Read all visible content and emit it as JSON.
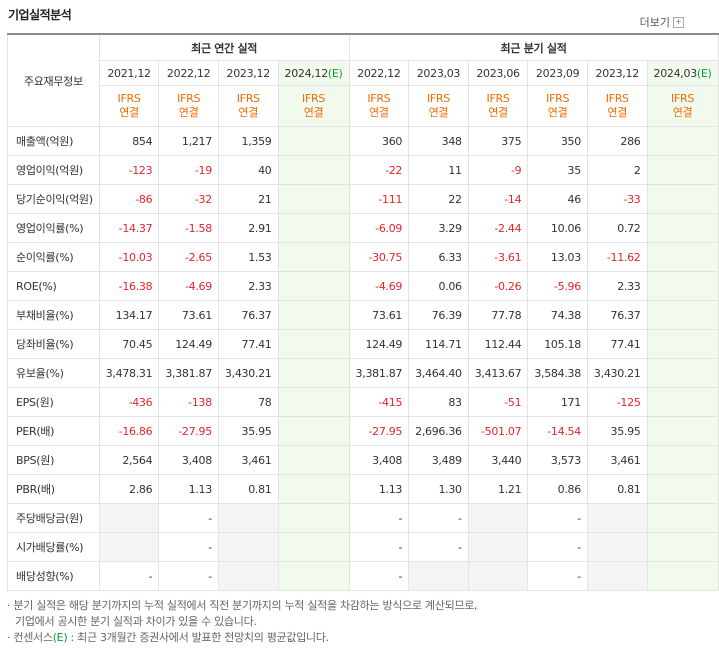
{
  "header": {
    "title": "기업실적분석",
    "more": "더보기"
  },
  "table": {
    "corner": "주요재무정보",
    "groups": [
      {
        "label": "최근 연간 실적",
        "columns": [
          {
            "period": "2021,12",
            "basis": "IFRS\n연결"
          },
          {
            "period": "2022,12",
            "basis": "IFRS\n연결"
          },
          {
            "period": "2023,12",
            "basis": "IFRS\n연결"
          },
          {
            "period": "2024,12",
            "mark": "(E)",
            "basis": "IFRS\n연결"
          }
        ]
      },
      {
        "label": "최근 분기 실적",
        "columns": [
          {
            "period": "2022,12",
            "basis": "IFRS\n연결"
          },
          {
            "period": "2023,03",
            "basis": "IFRS\n연결"
          },
          {
            "period": "2023,06",
            "basis": "IFRS\n연결"
          },
          {
            "period": "2023,09",
            "basis": "IFRS\n연결"
          },
          {
            "period": "2023,12",
            "basis": "IFRS\n연결"
          },
          {
            "period": "2024,03",
            "mark": "(E)",
            "basis": "IFRS\n연결"
          }
        ]
      }
    ],
    "sections": [
      [
        {
          "label": "매출액(억원)",
          "values": [
            "854",
            "1,217",
            "1,359",
            null,
            "360",
            "348",
            "375",
            "350",
            "286",
            null
          ]
        },
        {
          "label": "영업이익(억원)",
          "values": [
            "-123",
            "-19",
            "40",
            null,
            "-22",
            "11",
            "-9",
            "35",
            "2",
            null
          ]
        },
        {
          "label": "당기순이익(억원)",
          "values": [
            "-86",
            "-32",
            "21",
            null,
            "-111",
            "22",
            "-14",
            "46",
            "-33",
            null
          ]
        }
      ],
      [
        {
          "label": "영업이익률(%)",
          "values": [
            "-14.37",
            "-1.58",
            "2.91",
            null,
            "-6.09",
            "3.29",
            "-2.44",
            "10.06",
            "0.72",
            null
          ]
        },
        {
          "label": "순이익률(%)",
          "values": [
            "-10.03",
            "-2.65",
            "1.53",
            null,
            "-30.75",
            "6.33",
            "-3.61",
            "13.03",
            "-11.62",
            null
          ]
        },
        {
          "label": "ROE(%)",
          "values": [
            "-16.38",
            "-4.69",
            "2.33",
            null,
            "-4.69",
            "0.06",
            "-0.26",
            "-5.96",
            "2.33",
            null
          ]
        }
      ],
      [
        {
          "label": "부채비율(%)",
          "values": [
            "134.17",
            "73.61",
            "76.37",
            null,
            "73.61",
            "76.39",
            "77.78",
            "74.38",
            "76.37",
            null
          ]
        },
        {
          "label": "당좌비율(%)",
          "values": [
            "70.45",
            "124.49",
            "77.41",
            null,
            "124.49",
            "114.71",
            "112.44",
            "105.18",
            "77.41",
            null
          ]
        },
        {
          "label": "유보율(%)",
          "values": [
            "3,478.31",
            "3,381.87",
            "3,430.21",
            null,
            "3,381.87",
            "3,464.40",
            "3,413.67",
            "3,584.38",
            "3,430.21",
            null
          ]
        }
      ],
      [
        {
          "label": "EPS(원)",
          "values": [
            "-436",
            "-138",
            "78",
            null,
            "-415",
            "83",
            "-51",
            "171",
            "-125",
            null
          ]
        },
        {
          "label": "PER(배)",
          "values": [
            "-16.86",
            "-27.95",
            "35.95",
            null,
            "-27.95",
            "2,696.36",
            "-501.07",
            "-14.54",
            "35.95",
            null
          ]
        },
        {
          "label": "BPS(원)",
          "values": [
            "2,564",
            "3,408",
            "3,461",
            null,
            "3,408",
            "3,489",
            "3,440",
            "3,573",
            "3,461",
            null
          ]
        },
        {
          "label": "PBR(배)",
          "values": [
            "2.86",
            "1.13",
            "0.81",
            null,
            "1.13",
            "1.30",
            "1.21",
            "0.86",
            "0.81",
            null
          ]
        }
      ],
      [
        {
          "label": "주당배당금(원)",
          "values": [
            null,
            "-",
            null,
            null,
            "-",
            "-",
            null,
            "-",
            null,
            null
          ]
        },
        {
          "label": "시가배당률(%)",
          "values": [
            null,
            "-",
            null,
            null,
            "-",
            "-",
            null,
            "-",
            null,
            null
          ]
        },
        {
          "label": "배당성향(%)",
          "values": [
            "-",
            "-",
            null,
            null,
            "-",
            null,
            null,
            "-",
            null,
            null
          ]
        }
      ]
    ]
  },
  "notes": [
    {
      "lines": [
        "분기 실적은 해당 분기까지의 누적 실적에서 직전 분기까지의 누적 실적을 차감하는 방식으로 계산되므로,",
        "기업에서 공시한 분기 실적과 차이가 있을 수 있습니다."
      ]
    },
    {
      "parts": [
        "컨센서스",
        "(E)",
        " : 최근 3개월간 증권사에서 발표한 전망치의 평균값입니다."
      ]
    }
  ]
}
